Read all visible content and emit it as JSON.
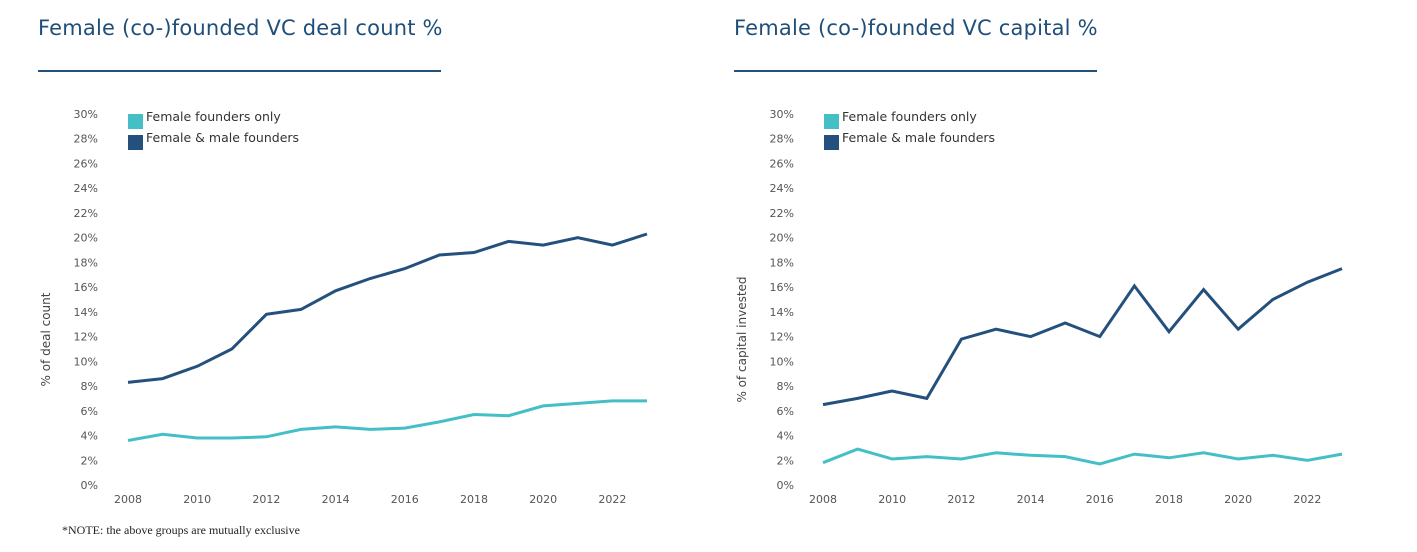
{
  "colors": {
    "female_only": "#45bfc6",
    "female_male": "#24507d",
    "title": "#1f4e79"
  },
  "footnote": "*NOTE: the above groups are mutually exclusive",
  "chart_data": [
    {
      "type": "line",
      "title": "Female (co-)founded VC deal count %",
      "xlabel": "",
      "ylabel": "% of deal count",
      "ylim": [
        0,
        30
      ],
      "yticks": [
        "0%",
        "2%",
        "4%",
        "6%",
        "8%",
        "10%",
        "12%",
        "14%",
        "16%",
        "18%",
        "20%",
        "22%",
        "24%",
        "26%",
        "28%",
        "30%"
      ],
      "xticks": [
        "2008",
        "2010",
        "2012",
        "2014",
        "2016",
        "2018",
        "2020",
        "2022"
      ],
      "x": [
        2008,
        2009,
        2010,
        2011,
        2012,
        2013,
        2014,
        2015,
        2016,
        2017,
        2018,
        2019,
        2020,
        2021,
        2022,
        2023
      ],
      "legend_position": "top-left",
      "grid": false,
      "series": [
        {
          "name": "Female founders only",
          "color": "#45bfc6",
          "values": [
            3.6,
            4.1,
            3.8,
            3.8,
            3.9,
            4.5,
            4.7,
            4.5,
            4.6,
            5.1,
            5.7,
            5.6,
            6.4,
            6.6,
            6.8,
            6.8
          ]
        },
        {
          "name": "Female & male founders",
          "color": "#24507d",
          "values": [
            8.3,
            8.6,
            9.6,
            11.0,
            13.8,
            14.2,
            15.7,
            16.7,
            17.5,
            18.6,
            18.8,
            19.7,
            19.4,
            20.0,
            19.4,
            20.3
          ]
        }
      ]
    },
    {
      "type": "line",
      "title": "Female (co-)founded VC capital %",
      "xlabel": "",
      "ylabel": "% of capital invested",
      "ylim": [
        0,
        30
      ],
      "yticks": [
        "0%",
        "2%",
        "4%",
        "6%",
        "8%",
        "10%",
        "12%",
        "14%",
        "16%",
        "18%",
        "20%",
        "22%",
        "24%",
        "26%",
        "28%",
        "30%"
      ],
      "xticks": [
        "2008",
        "2010",
        "2012",
        "2014",
        "2016",
        "2018",
        "2020",
        "2022"
      ],
      "x": [
        2008,
        2009,
        2010,
        2011,
        2012,
        2013,
        2014,
        2015,
        2016,
        2017,
        2018,
        2019,
        2020,
        2021,
        2022,
        2023
      ],
      "legend_position": "top-left",
      "grid": false,
      "series": [
        {
          "name": "Female founders only",
          "color": "#45bfc6",
          "values": [
            1.8,
            2.9,
            2.1,
            2.3,
            2.1,
            2.6,
            2.4,
            2.3,
            1.7,
            2.5,
            2.2,
            2.6,
            2.1,
            2.4,
            2.0,
            2.5
          ]
        },
        {
          "name": "Female & male founders",
          "color": "#24507d",
          "values": [
            6.5,
            7.0,
            7.6,
            7.0,
            11.8,
            12.6,
            12.0,
            13.1,
            12.0,
            16.1,
            12.4,
            15.8,
            12.6,
            15.0,
            16.4,
            17.5
          ]
        }
      ]
    }
  ]
}
